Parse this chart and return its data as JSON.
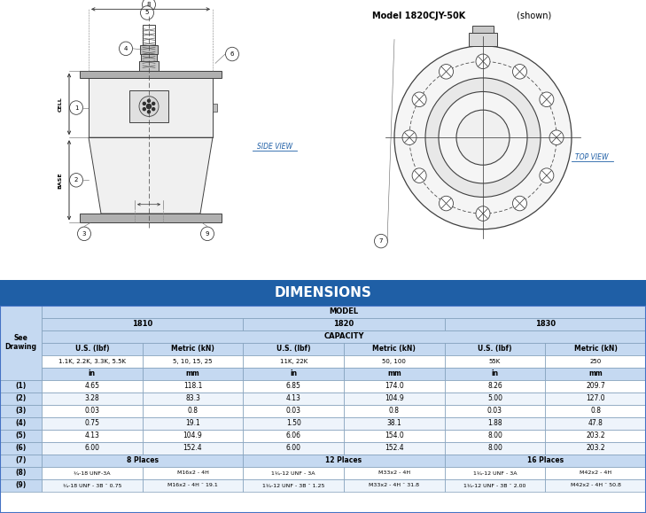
{
  "title": "DIMENSIONS",
  "model_label_bold": "Model 1820CJY-50K",
  "model_label_normal": " (shown)",
  "side_view_label": "SIDE VIEW",
  "top_view_label": "TOP VIEW",
  "header_bg": "#1F5FA6",
  "header_text": "#FFFFFF",
  "light_blue_bg": "#C5D9F1",
  "white_bg": "#FFFFFF",
  "row_bg_alt": "#EEF4FB",
  "border_color": "#7F9DB9",
  "capacity_1810_us": "1.1K, 2.2K, 3.3K, 5.5K",
  "capacity_1810_met": "5, 10, 15, 25",
  "capacity_1820_us": "11K, 22K",
  "capacity_1820_met": "50, 100",
  "capacity_1830_us": "55K",
  "capacity_1830_met": "250",
  "rows": [
    [
      "(1)",
      "4.65",
      "118.1",
      "6.85",
      "174.0",
      "8.26",
      "209.7"
    ],
    [
      "(2)",
      "3.28",
      "83.3",
      "4.13",
      "104.9",
      "5.00",
      "127.0"
    ],
    [
      "(3)",
      "0.03",
      "0.8",
      "0.03",
      "0.8",
      "0.03",
      "0.8"
    ],
    [
      "(4)",
      "0.75",
      "19.1",
      "1.50",
      "38.1",
      "1.88",
      "47.8"
    ],
    [
      "(5)",
      "4.13",
      "104.9",
      "6.06",
      "154.0",
      "8.00",
      "203.2"
    ],
    [
      "(6)",
      "6.00",
      "152.4",
      "6.00",
      "152.4",
      "8.00",
      "203.2"
    ],
    [
      "(7)",
      "8 Places",
      "",
      "12 Places",
      "",
      "16 Places",
      ""
    ],
    [
      "(8)",
      "¾-18 UNF-3A",
      "M16x2 - 4H",
      "1¼-12 UNF - 3A",
      "M33x2 - 4H",
      "1¼-12 UNF - 3A",
      "M42x2 - 4H"
    ],
    [
      "(9)",
      "¾-18 UNF - 3B ¯ 0.75",
      "M16x2 - 4H ¯ 19.1",
      "1¼-12 UNF - 3B ¯ 1.25",
      "M33x2 - 4H ¯ 31.8",
      "1¼-12 UNF - 3B ¯ 2.00",
      "M42x2 - 4H ¯ 50.8"
    ]
  ],
  "bg_color": "#FFFFFF"
}
